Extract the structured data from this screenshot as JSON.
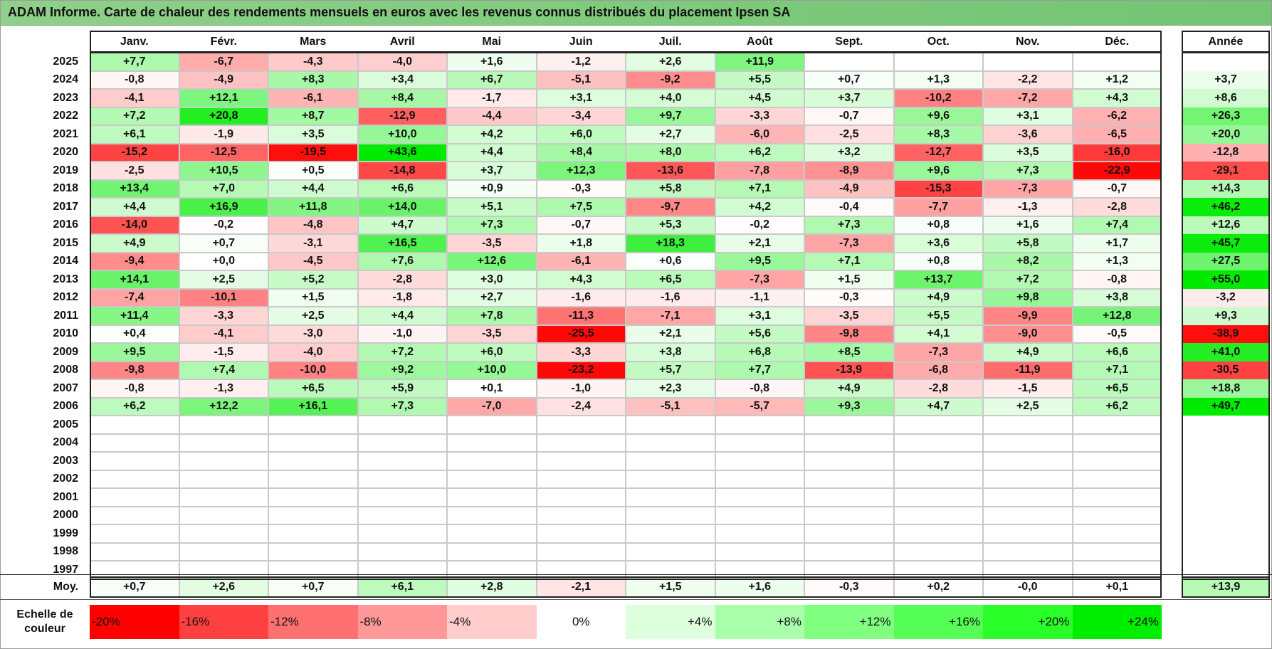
{
  "title": "ADAM Informe. Carte de chaleur des rendements mensuels en euros avec les revenus connus distribués du placement Ipsen SA",
  "chart_data": {
    "type": "heatmap",
    "months": [
      "Janv.",
      "Févr.",
      "Mars",
      "Avril",
      "Mai",
      "Juin",
      "Juil.",
      "Août",
      "Sept.",
      "Oct.",
      "Nov.",
      "Déc."
    ],
    "year_header": "Année",
    "rows": [
      {
        "year": "2025",
        "values": [
          "+7,7",
          "-6,7",
          "-4,3",
          "-4,0",
          "+1,6",
          "-1,2",
          "+2,6",
          "+11,9",
          "",
          "",
          "",
          ""
        ],
        "annual": ""
      },
      {
        "year": "2024",
        "values": [
          "-0,8",
          "-4,9",
          "+8,3",
          "+3,4",
          "+6,7",
          "-5,1",
          "-9,2",
          "+5,5",
          "+0,7",
          "+1,3",
          "-2,2",
          "+1,2"
        ],
        "annual": "+3,7"
      },
      {
        "year": "2023",
        "values": [
          "-4,1",
          "+12,1",
          "-6,1",
          "+8,4",
          "-1,7",
          "+3,1",
          "+4,0",
          "+4,5",
          "+3,7",
          "-10,2",
          "-7,2",
          "+4,3"
        ],
        "annual": "+8,6"
      },
      {
        "year": "2022",
        "values": [
          "+7,2",
          "+20,8",
          "+8,7",
          "-12,9",
          "-4,4",
          "-3,4",
          "+9,7",
          "-3,3",
          "-0,7",
          "+9,6",
          "+3,1",
          "-6,2"
        ],
        "annual": "+26,3"
      },
      {
        "year": "2021",
        "values": [
          "+6,1",
          "-1,9",
          "+3,5",
          "+10,0",
          "+4,2",
          "+6,0",
          "+2,7",
          "-6,0",
          "-2,5",
          "+8,3",
          "-3,6",
          "-6,5"
        ],
        "annual": "+20,0"
      },
      {
        "year": "2020",
        "values": [
          "-15,2",
          "-12,5",
          "-19,5",
          "+43,6",
          "+4,4",
          "+8,4",
          "+8,0",
          "+6,2",
          "+3,2",
          "-12,7",
          "+3,5",
          "-16,0"
        ],
        "annual": "-12,8"
      },
      {
        "year": "2019",
        "values": [
          "-2,5",
          "+10,5",
          "+0,5",
          "-14,8",
          "+3,7",
          "+12,3",
          "-13,6",
          "-7,8",
          "-8,9",
          "+9,6",
          "+7,3",
          "-22,9"
        ],
        "annual": "-29,1"
      },
      {
        "year": "2018",
        "values": [
          "+13,4",
          "+7,0",
          "+4,4",
          "+6,6",
          "+0,9",
          "-0,3",
          "+5,8",
          "+7,1",
          "-4,9",
          "-15,3",
          "-7,3",
          "-0,7"
        ],
        "annual": "+14,3"
      },
      {
        "year": "2017",
        "values": [
          "+4,4",
          "+16,9",
          "+11,8",
          "+14,0",
          "+5,1",
          "+7,5",
          "-9,7",
          "+4,2",
          "-0,4",
          "-7,7",
          "-1,3",
          "-2,8"
        ],
        "annual": "+46,2"
      },
      {
        "year": "2016",
        "values": [
          "-14,0",
          "-0,2",
          "-4,8",
          "+4,7",
          "+7,3",
          "-0,7",
          "+5,3",
          "-0,2",
          "+7,3",
          "+0,8",
          "+1,6",
          "+7,4"
        ],
        "annual": "+12,6"
      },
      {
        "year": "2015",
        "values": [
          "+4,9",
          "+0,7",
          "-3,1",
          "+16,5",
          "-3,5",
          "+1,8",
          "+18,3",
          "+2,1",
          "-7,3",
          "+3,6",
          "+5,8",
          "+1,7"
        ],
        "annual": "+45,7"
      },
      {
        "year": "2014",
        "values": [
          "-9,4",
          "+0,0",
          "-4,5",
          "+7,6",
          "+12,6",
          "-6,1",
          "+0,6",
          "+9,5",
          "+7,1",
          "+0,8",
          "+8,2",
          "+1,3"
        ],
        "annual": "+27,5"
      },
      {
        "year": "2013",
        "values": [
          "+14,1",
          "+2,5",
          "+5,2",
          "-2,8",
          "+3,0",
          "+4,3",
          "+6,5",
          "-7,3",
          "+1,5",
          "+13,7",
          "+7,2",
          "-0,8"
        ],
        "annual": "+55,0"
      },
      {
        "year": "2012",
        "values": [
          "-7,4",
          "-10,1",
          "+1,5",
          "-1,8",
          "+2,7",
          "-1,6",
          "-1,6",
          "-1,1",
          "-0,3",
          "+4,9",
          "+9,8",
          "+3,8"
        ],
        "annual": "-3,2"
      },
      {
        "year": "2011",
        "values": [
          "+11,4",
          "-3,3",
          "+2,5",
          "+4,4",
          "+7,8",
          "-11,3",
          "-7,1",
          "+3,1",
          "-3,5",
          "+5,5",
          "-9,9",
          "+12,8"
        ],
        "annual": "+9,3"
      },
      {
        "year": "2010",
        "values": [
          "+0,4",
          "-4,1",
          "-3,0",
          "-1,0",
          "-3,5",
          "-25,5",
          "+2,1",
          "+5,6",
          "-9,8",
          "+4,1",
          "-9,0",
          "-0,5"
        ],
        "annual": "-38,9"
      },
      {
        "year": "2009",
        "values": [
          "+9,5",
          "-1,5",
          "-4,0",
          "+7,2",
          "+6,0",
          "-3,3",
          "+3,8",
          "+6,8",
          "+8,5",
          "-7,3",
          "+4,9",
          "+6,6"
        ],
        "annual": "+41,0"
      },
      {
        "year": "2008",
        "values": [
          "-9,8",
          "+7,4",
          "-10,0",
          "+9,2",
          "+10,0",
          "-23,2",
          "+5,7",
          "+7,7",
          "-13,9",
          "-6,8",
          "-11,9",
          "+7,1"
        ],
        "annual": "-30,5"
      },
      {
        "year": "2007",
        "values": [
          "-0,8",
          "-1,3",
          "+6,5",
          "+5,9",
          "+0,1",
          "-1,0",
          "+2,3",
          "-0,8",
          "+4,9",
          "-2,8",
          "-1,5",
          "+6,5"
        ],
        "annual": "+18,8"
      },
      {
        "year": "2006",
        "values": [
          "+6,2",
          "+12,2",
          "+16,1",
          "+7,3",
          "-7,0",
          "-2,4",
          "-5,1",
          "-5,7",
          "+9,3",
          "+4,7",
          "+2,5",
          "+6,2"
        ],
        "annual": "+49,7"
      },
      {
        "year": "2005",
        "values": [
          "",
          "",
          "",
          "",
          "",
          "",
          "",
          "",
          "",
          "",
          "",
          ""
        ],
        "annual": ""
      },
      {
        "year": "2004",
        "values": [
          "",
          "",
          "",
          "",
          "",
          "",
          "",
          "",
          "",
          "",
          "",
          ""
        ],
        "annual": ""
      },
      {
        "year": "2003",
        "values": [
          "",
          "",
          "",
          "",
          "",
          "",
          "",
          "",
          "",
          "",
          "",
          ""
        ],
        "annual": ""
      },
      {
        "year": "2002",
        "values": [
          "",
          "",
          "",
          "",
          "",
          "",
          "",
          "",
          "",
          "",
          "",
          ""
        ],
        "annual": ""
      },
      {
        "year": "2001",
        "values": [
          "",
          "",
          "",
          "",
          "",
          "",
          "",
          "",
          "",
          "",
          "",
          ""
        ],
        "annual": ""
      },
      {
        "year": "2000",
        "values": [
          "",
          "",
          "",
          "",
          "",
          "",
          "",
          "",
          "",
          "",
          "",
          ""
        ],
        "annual": ""
      },
      {
        "year": "1999",
        "values": [
          "",
          "",
          "",
          "",
          "",
          "",
          "",
          "",
          "",
          "",
          "",
          ""
        ],
        "annual": ""
      },
      {
        "year": "1998",
        "values": [
          "",
          "",
          "",
          "",
          "",
          "",
          "",
          "",
          "",
          "",
          "",
          ""
        ],
        "annual": ""
      },
      {
        "year": "1997",
        "values": [
          "",
          "",
          "",
          "",
          "",
          "",
          "",
          "",
          "",
          "",
          "",
          ""
        ],
        "annual": ""
      }
    ],
    "average": {
      "label": "Moy.",
      "values": [
        "+0,7",
        "+2,6",
        "+0,7",
        "+6,1",
        "+2,8",
        "-2,1",
        "+1,5",
        "+1,6",
        "-0,3",
        "+0,2",
        "-0,0",
        "+0,1"
      ],
      "annual": "+13,9"
    },
    "scale": {
      "label_line1": "Echelle de",
      "label_line2": "couleur",
      "items": [
        "-20%",
        "-16%",
        "-12%",
        "-8%",
        "-4%",
        "0%",
        "+4%",
        "+8%",
        "+12%",
        "+16%",
        "+20%",
        "+24%"
      ],
      "colors": [
        "#ff0000",
        "#ff4040",
        "#ff7070",
        "#ff9999",
        "#ffcccc",
        "#ffffff",
        "#ddffdd",
        "#aaffaa",
        "#80ff80",
        "#55ff55",
        "#2aff2a",
        "#00ee00"
      ]
    }
  }
}
